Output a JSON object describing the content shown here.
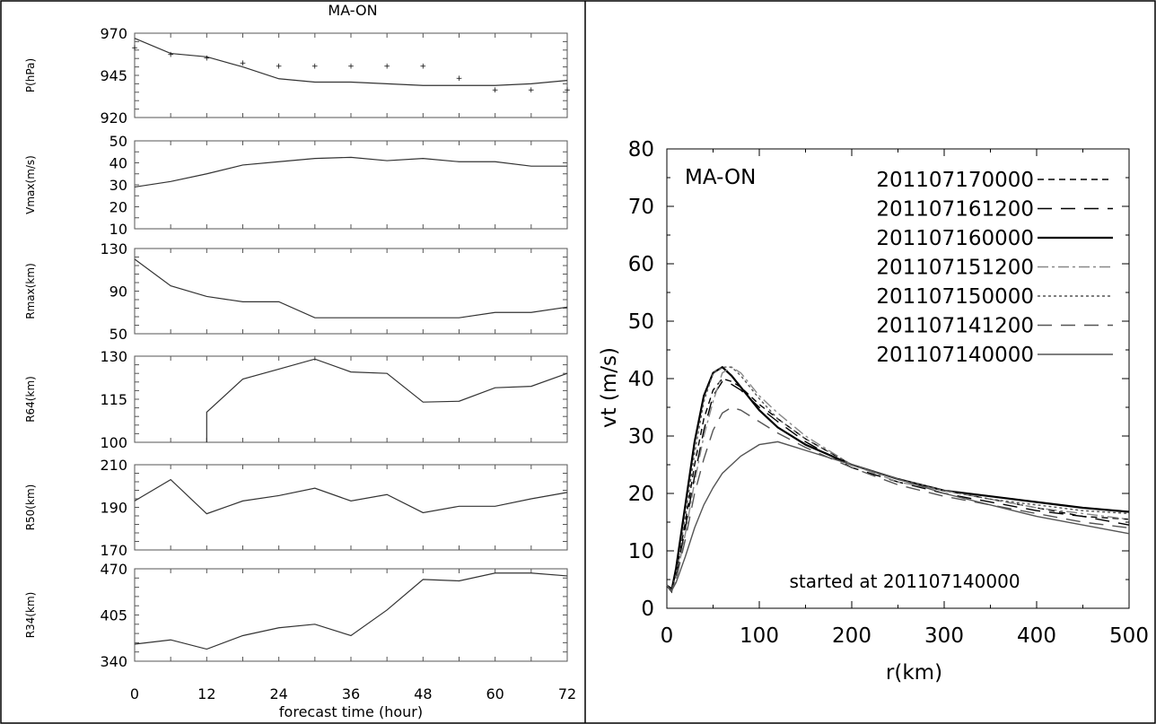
{
  "left_title": "MA-ON",
  "chart_data": [
    {
      "type": "line",
      "ylabel": "P(hPa)",
      "xlabel": "",
      "xlim": [
        0,
        72
      ],
      "ylim": [
        920,
        970
      ],
      "yticks": [
        "970",
        "945",
        "920"
      ],
      "yticks_values": [
        970,
        945,
        920
      ],
      "series": [
        {
          "style": "line",
          "x": [
            0,
            6,
            12,
            18,
            24,
            30,
            36,
            42,
            48,
            54,
            60,
            66,
            72
          ],
          "values": [
            967,
            958,
            956,
            950,
            943,
            941,
            941,
            940,
            939,
            939,
            939,
            940,
            942
          ]
        },
        {
          "style": "markers",
          "x": [
            0,
            6,
            12,
            18,
            24,
            30,
            36,
            42,
            48,
            54,
            60,
            66,
            72
          ],
          "values": [
            962,
            958,
            956,
            953,
            951,
            951,
            951,
            951,
            951,
            944,
            937,
            937,
            937
          ]
        }
      ]
    },
    {
      "type": "line",
      "ylabel": "Vmax(m/s)",
      "xlabel": "",
      "xlim": [
        0,
        72
      ],
      "ylim": [
        10,
        50
      ],
      "yticks": [
        "50",
        "40",
        "30",
        "20",
        "10"
      ],
      "yticks_values": [
        50,
        40,
        30,
        20,
        10
      ],
      "series": [
        {
          "style": "line",
          "x": [
            0,
            6,
            12,
            18,
            24,
            30,
            36,
            42,
            48,
            54,
            60,
            66,
            72
          ],
          "values": [
            29,
            31.5,
            35,
            39,
            40.5,
            42,
            42.5,
            41,
            42,
            40.5,
            40.5,
            38.5,
            38.5
          ]
        }
      ]
    },
    {
      "type": "line",
      "ylabel": "Rmax(km)",
      "xlabel": "",
      "xlim": [
        0,
        72
      ],
      "ylim": [
        50,
        130
      ],
      "yticks": [
        "130",
        "90",
        "50"
      ],
      "yticks_values": [
        130,
        90,
        50
      ],
      "series": [
        {
          "style": "line",
          "x": [
            0,
            6,
            12,
            18,
            24,
            30,
            36,
            42,
            48,
            54,
            60,
            66,
            72
          ],
          "values": [
            120,
            95,
            85,
            80,
            80,
            65,
            65,
            65,
            65,
            65,
            70,
            70,
            75
          ]
        }
      ]
    },
    {
      "type": "line",
      "ylabel": "R64(km)",
      "xlabel": "",
      "xlim": [
        0,
        72
      ],
      "ylim": [
        100,
        130
      ],
      "yticks": [
        "130",
        "115",
        "100"
      ],
      "yticks_values": [
        130,
        115,
        100
      ],
      "series": [
        {
          "style": "line",
          "x": [
            12,
            12,
            18,
            24,
            30,
            36,
            42,
            48,
            54,
            60,
            66,
            72
          ],
          "values": [
            100,
            110.5,
            122,
            125.5,
            129,
            124.5,
            124,
            114,
            114.3,
            119,
            119.5,
            124
          ]
        }
      ]
    },
    {
      "type": "line",
      "ylabel": "R50(km)",
      "xlabel": "",
      "xlim": [
        0,
        72
      ],
      "ylim": [
        170,
        210
      ],
      "yticks": [
        "210",
        "190",
        "170"
      ],
      "yticks_values": [
        210,
        190,
        170
      ],
      "series": [
        {
          "style": "line",
          "x": [
            0,
            6,
            12,
            18,
            24,
            30,
            36,
            42,
            48,
            54,
            60,
            66,
            72
          ],
          "values": [
            193,
            203,
            187,
            193,
            195.5,
            199,
            193,
            196,
            187.5,
            190.5,
            190.5,
            194,
            197
          ]
        }
      ]
    },
    {
      "type": "line",
      "ylabel": "R34(km)",
      "xlabel": "forecast time (hour)",
      "xlim": [
        0,
        72
      ],
      "ylim": [
        340,
        470
      ],
      "yticks": [
        "470",
        "405",
        "340"
      ],
      "yticks_values": [
        470,
        405,
        340
      ],
      "xticks": [
        "0",
        "12",
        "24",
        "36",
        "48",
        "60",
        "72"
      ],
      "xticks_values": [
        0,
        12,
        24,
        36,
        48,
        60,
        72
      ],
      "series": [
        {
          "style": "line",
          "x": [
            0,
            6,
            12,
            18,
            24,
            30,
            36,
            42,
            48,
            54,
            60,
            66,
            72
          ],
          "values": [
            364,
            370,
            357,
            376,
            387,
            392,
            376,
            412,
            455,
            453,
            464,
            464,
            460
          ]
        }
      ]
    },
    {
      "type": "line",
      "title": "MA-ON",
      "annotation": "started at 201107140000",
      "xlabel": "r(km)",
      "ylabel": "vt (m/s)",
      "xlim": [
        0,
        500
      ],
      "ylim": [
        0,
        80
      ],
      "xticks": [
        "0",
        "100",
        "200",
        "300",
        "400",
        "500"
      ],
      "xticks_values": [
        0,
        100,
        200,
        300,
        400,
        500
      ],
      "yticks": [
        "0",
        "10",
        "20",
        "30",
        "40",
        "50",
        "60",
        "70",
        "80"
      ],
      "yticks_values": [
        0,
        10,
        20,
        30,
        40,
        50,
        60,
        70,
        80
      ],
      "grid": false,
      "legend_position": "top-right",
      "series": [
        {
          "name": "201107170000",
          "color": "#000000",
          "dash": "dashed",
          "x": [
            0,
            5,
            10,
            20,
            30,
            40,
            50,
            60,
            70,
            80,
            90,
            100,
            120,
            150,
            200,
            250,
            300,
            350,
            400,
            450,
            500
          ],
          "values": [
            4,
            3.5,
            6,
            15,
            25,
            33,
            38,
            40,
            39.5,
            38.5,
            37,
            35.5,
            33,
            29.5,
            25,
            22.5,
            20.5,
            19,
            17.5,
            16,
            15.5
          ]
        },
        {
          "name": "201107161200",
          "color": "#000000",
          "dash": "longdash",
          "x": [
            0,
            5,
            10,
            20,
            30,
            40,
            50,
            60,
            70,
            80,
            90,
            100,
            120,
            150,
            200,
            250,
            300,
            350,
            400,
            450,
            500
          ],
          "values": [
            4,
            3,
            5.5,
            14,
            23,
            31,
            37,
            39.5,
            39,
            38,
            36.5,
            35,
            32.5,
            29,
            24.5,
            22,
            20,
            18.5,
            17,
            16,
            14.5
          ]
        },
        {
          "name": "201107160000",
          "color": "#000000",
          "dash": "solid",
          "width": 2.2,
          "x": [
            0,
            5,
            10,
            20,
            30,
            40,
            50,
            60,
            70,
            80,
            90,
            100,
            120,
            150,
            200,
            250,
            300,
            350,
            400,
            450,
            500
          ],
          "values": [
            4,
            3,
            7,
            18,
            29,
            37,
            41,
            42,
            40.5,
            38.5,
            36.5,
            34.5,
            31.5,
            28.5,
            25,
            22.5,
            20.5,
            19.5,
            18.5,
            17.5,
            16.8
          ]
        },
        {
          "name": "201107151200",
          "color": "#888888",
          "dash": "dashdot",
          "x": [
            0,
            5,
            10,
            20,
            30,
            40,
            50,
            60,
            70,
            80,
            90,
            100,
            120,
            150,
            200,
            250,
            300,
            350,
            400,
            450,
            500
          ],
          "values": [
            4,
            3,
            5,
            13,
            22,
            30,
            36,
            41,
            42,
            41,
            39,
            37,
            34,
            30,
            25,
            22,
            20.5,
            19,
            17.5,
            16.5,
            15.5
          ]
        },
        {
          "name": "201107150000",
          "color": "#555555",
          "dash": "dotted",
          "x": [
            0,
            5,
            10,
            20,
            30,
            40,
            50,
            60,
            70,
            80,
            90,
            100,
            120,
            150,
            200,
            250,
            300,
            350,
            400,
            450,
            500
          ],
          "values": [
            4,
            3,
            6,
            16,
            27,
            36,
            41,
            42,
            42,
            40.5,
            38.5,
            36.5,
            33,
            29.5,
            25,
            22.5,
            20.5,
            19,
            18,
            17,
            16.5
          ]
        },
        {
          "name": "201107141200",
          "color": "#555555",
          "dash": "longdash",
          "x": [
            0,
            5,
            10,
            20,
            30,
            40,
            50,
            60,
            70,
            80,
            90,
            100,
            120,
            150,
            200,
            250,
            300,
            350,
            400,
            450,
            500
          ],
          "values": [
            4,
            3,
            5,
            12,
            20,
            26,
            31,
            34,
            35,
            34.5,
            33.5,
            32.5,
            30.5,
            28,
            24.5,
            21.5,
            19.5,
            18,
            16.5,
            15,
            14
          ]
        },
        {
          "name": "201107140000",
          "color": "#555555",
          "dash": "solid",
          "x": [
            0,
            5,
            10,
            20,
            30,
            40,
            50,
            60,
            80,
            100,
            120,
            150,
            200,
            250,
            300,
            350,
            400,
            450,
            500
          ],
          "values": [
            4,
            3,
            4.5,
            9,
            14,
            18,
            21,
            23.5,
            26.5,
            28.5,
            29,
            27.5,
            25,
            22.5,
            20,
            18,
            16,
            14.5,
            13
          ]
        }
      ]
    }
  ]
}
